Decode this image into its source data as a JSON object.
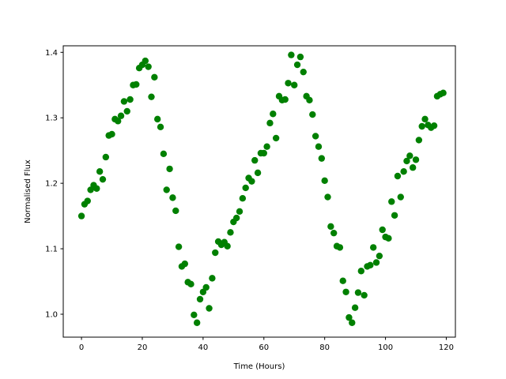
{
  "chart_data": {
    "type": "scatter",
    "title": "",
    "xlabel": "Time (Hours)",
    "ylabel": "Normalised Flux",
    "xlim": [
      -6,
      123
    ],
    "ylim": [
      0.965,
      1.41
    ],
    "xticks": [
      0,
      20,
      40,
      60,
      80,
      100,
      120
    ],
    "yticks": [
      1.0,
      1.1,
      1.2,
      1.3,
      1.4
    ],
    "xtick_labels": [
      "0",
      "20",
      "40",
      "60",
      "80",
      "100",
      "120"
    ],
    "ytick_labels": [
      "1.0",
      "1.1",
      "1.2",
      "1.3",
      "1.4"
    ],
    "marker_color": "#008000",
    "grid": false,
    "series": [
      {
        "points": [
          [
            0,
            1.15
          ],
          [
            1,
            1.168
          ],
          [
            2,
            1.173
          ],
          [
            3,
            1.19
          ],
          [
            4,
            1.197
          ],
          [
            5,
            1.192
          ],
          [
            6,
            1.218
          ],
          [
            7,
            1.206
          ],
          [
            8,
            1.24
          ],
          [
            9,
            1.273
          ],
          [
            10,
            1.275
          ],
          [
            11,
            1.298
          ],
          [
            12,
            1.295
          ],
          [
            13,
            1.303
          ],
          [
            14,
            1.325
          ],
          [
            15,
            1.31
          ],
          [
            16,
            1.328
          ],
          [
            17,
            1.35
          ],
          [
            18,
            1.351
          ],
          [
            19,
            1.376
          ],
          [
            20,
            1.381
          ],
          [
            21,
            1.387
          ],
          [
            22,
            1.378
          ],
          [
            23,
            1.332
          ],
          [
            24,
            1.362
          ],
          [
            25,
            1.298
          ],
          [
            26,
            1.286
          ],
          [
            27,
            1.245
          ],
          [
            28,
            1.19
          ],
          [
            29,
            1.222
          ],
          [
            30,
            1.178
          ],
          [
            31,
            1.158
          ],
          [
            32,
            1.103
          ],
          [
            33,
            1.073
          ],
          [
            34,
            1.077
          ],
          [
            35,
            1.049
          ],
          [
            36,
            1.046
          ],
          [
            37,
            0.999
          ],
          [
            38,
            0.987
          ],
          [
            39,
            1.023
          ],
          [
            40,
            1.034
          ],
          [
            41,
            1.041
          ],
          [
            42,
            1.009
          ],
          [
            43,
            1.055
          ],
          [
            44,
            1.094
          ],
          [
            45,
            1.111
          ],
          [
            46,
            1.106
          ],
          [
            47,
            1.11
          ],
          [
            48,
            1.104
          ],
          [
            49,
            1.125
          ],
          [
            50,
            1.141
          ],
          [
            51,
            1.147
          ],
          [
            52,
            1.157
          ],
          [
            53,
            1.177
          ],
          [
            54,
            1.193
          ],
          [
            55,
            1.208
          ],
          [
            56,
            1.203
          ],
          [
            57,
            1.235
          ],
          [
            58,
            1.216
          ],
          [
            59,
            1.246
          ],
          [
            60,
            1.246
          ],
          [
            61,
            1.256
          ],
          [
            62,
            1.292
          ],
          [
            63,
            1.306
          ],
          [
            64,
            1.269
          ],
          [
            65,
            1.333
          ],
          [
            66,
            1.327
          ],
          [
            67,
            1.328
          ],
          [
            68,
            1.353
          ],
          [
            69,
            1.396
          ],
          [
            70,
            1.35
          ],
          [
            71,
            1.381
          ],
          [
            72,
            1.393
          ],
          [
            73,
            1.37
          ],
          [
            74,
            1.333
          ],
          [
            75,
            1.327
          ],
          [
            76,
            1.305
          ],
          [
            77,
            1.272
          ],
          [
            78,
            1.256
          ],
          [
            79,
            1.238
          ],
          [
            80,
            1.204
          ],
          [
            81,
            1.179
          ],
          [
            82,
            1.134
          ],
          [
            83,
            1.124
          ],
          [
            84,
            1.104
          ],
          [
            85,
            1.102
          ],
          [
            86,
            1.051
          ],
          [
            87,
            1.034
          ],
          [
            88,
            0.995
          ],
          [
            89,
            0.987
          ],
          [
            90,
            1.01
          ],
          [
            91,
            1.033
          ],
          [
            92,
            1.066
          ],
          [
            93,
            1.029
          ],
          [
            94,
            1.073
          ],
          [
            95,
            1.075
          ],
          [
            96,
            1.102
          ],
          [
            97,
            1.079
          ],
          [
            98,
            1.089
          ],
          [
            99,
            1.129
          ],
          [
            100,
            1.118
          ],
          [
            101,
            1.116
          ],
          [
            102,
            1.172
          ],
          [
            103,
            1.151
          ],
          [
            104,
            1.211
          ],
          [
            105,
            1.179
          ],
          [
            106,
            1.218
          ],
          [
            107,
            1.234
          ],
          [
            108,
            1.242
          ],
          [
            109,
            1.224
          ],
          [
            110,
            1.236
          ],
          [
            111,
            1.266
          ],
          [
            112,
            1.287
          ],
          [
            113,
            1.298
          ],
          [
            114,
            1.289
          ],
          [
            115,
            1.285
          ],
          [
            116,
            1.288
          ],
          [
            117,
            1.333
          ],
          [
            118,
            1.336
          ],
          [
            119,
            1.338
          ]
        ]
      }
    ]
  }
}
